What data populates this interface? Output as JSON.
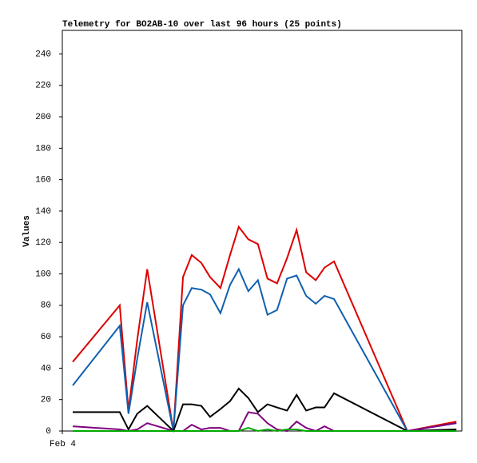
{
  "chart_data": {
    "type": "line",
    "title": "Telemetry for BO2AB-10 over last 96 hours (25 points)",
    "y_label": "Values",
    "x": [
      2.5,
      13.8,
      15.9,
      18.0,
      20.4,
      26.7,
      29.0,
      31.1,
      33.4,
      35.5,
      38.0,
      40.3,
      42.4,
      44.7,
      47.0,
      49.3,
      51.6,
      54.0,
      56.3,
      58.6,
      60.9,
      63.0,
      65.3,
      82.9,
      94.7
    ],
    "xlim": [
      0,
      96
    ],
    "xticks": [
      {
        "value": 0,
        "label": "Feb 4"
      }
    ],
    "ylim": [
      0,
      255
    ],
    "yticks": [
      0,
      20,
      40,
      60,
      80,
      100,
      120,
      140,
      160,
      180,
      200,
      220,
      240
    ],
    "grid": false,
    "series": [
      {
        "color": "#dd0000",
        "values": [
          44,
          80,
          13,
          58,
          103,
          0,
          98,
          112,
          107,
          98,
          91,
          112,
          130,
          122,
          119,
          97,
          94,
          110,
          128,
          101,
          96,
          104,
          108,
          0,
          6
        ]
      },
      {
        "color": "#1060b0",
        "values": [
          29,
          67,
          11,
          46,
          82,
          0,
          80,
          91,
          90,
          87,
          75,
          93,
          103,
          89,
          96,
          74,
          77,
          97,
          99,
          86,
          81,
          86,
          84,
          0,
          5
        ]
      },
      {
        "color": "#000000",
        "values": [
          12,
          12,
          1,
          11,
          16,
          0,
          17,
          17,
          16,
          9,
          14,
          19,
          27,
          21,
          12,
          17,
          15,
          13,
          23,
          13,
          15,
          15,
          24,
          0,
          1
        ]
      },
      {
        "color": "#800080",
        "values": [
          3,
          1,
          0,
          1,
          5,
          0,
          0,
          4,
          1,
          2,
          2,
          0,
          0,
          12,
          11,
          5,
          1,
          0,
          6,
          2,
          0,
          3,
          0,
          0,
          5
        ]
      },
      {
        "color": "#00aa00",
        "values": [
          0,
          0,
          0,
          0,
          0,
          0,
          0,
          0,
          0,
          0,
          0,
          0,
          0,
          2,
          0,
          1,
          0,
          1,
          1,
          0,
          0,
          0,
          0,
          0,
          0
        ]
      }
    ]
  }
}
